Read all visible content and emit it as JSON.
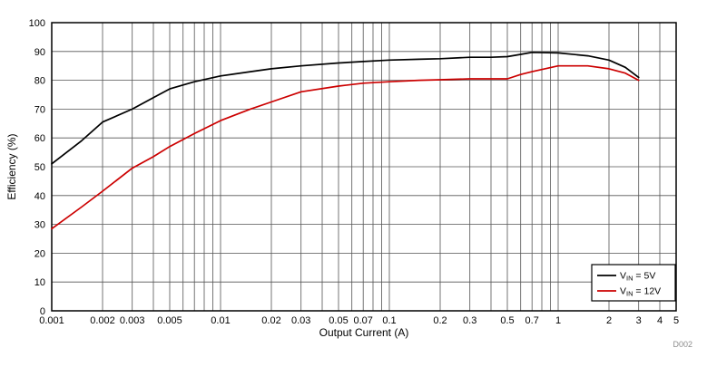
{
  "chart_data": {
    "type": "line",
    "xlabel": "Output Current (A)",
    "ylabel": "Efficiency (%)",
    "watermark": "D002",
    "xscale": "log",
    "xlim": [
      0.001,
      5
    ],
    "ylim": [
      0,
      100
    ],
    "grid": true,
    "legend_position": "lower right",
    "colors": {
      "grid": "#545454",
      "axis": "#000000",
      "legend_border": "#000000",
      "legend_fill": "#ffffff",
      "watermark": "#8c8c8c"
    },
    "x_ticks": [
      {
        "v": 0.001,
        "label": "0.001"
      },
      {
        "v": 0.002,
        "label": "0.002"
      },
      {
        "v": 0.003,
        "label": "0.003"
      },
      {
        "v": 0.005,
        "label": "0.005"
      },
      {
        "v": 0.01,
        "label": "0.01"
      },
      {
        "v": 0.02,
        "label": "0.02"
      },
      {
        "v": 0.03,
        "label": "0.03"
      },
      {
        "v": 0.05,
        "label": "0.05"
      },
      {
        "v": 0.07,
        "label": "0.07"
      },
      {
        "v": 0.1,
        "label": "0.1"
      },
      {
        "v": 0.2,
        "label": "0.2"
      },
      {
        "v": 0.3,
        "label": "0.3"
      },
      {
        "v": 0.5,
        "label": "0.5"
      },
      {
        "v": 0.7,
        "label": "0.7"
      },
      {
        "v": 1,
        "label": "1"
      },
      {
        "v": 2,
        "label": "2"
      },
      {
        "v": 3,
        "label": "3"
      },
      {
        "v": 4,
        "label": "4"
      },
      {
        "v": 5,
        "label": "5"
      }
    ],
    "y_ticks": [
      0,
      10,
      20,
      30,
      40,
      50,
      60,
      70,
      80,
      90,
      100
    ],
    "x": [
      0.001,
      0.0015,
      0.002,
      0.003,
      0.004,
      0.005,
      0.007,
      0.01,
      0.015,
      0.02,
      0.03,
      0.05,
      0.07,
      0.1,
      0.15,
      0.2,
      0.3,
      0.4,
      0.5,
      0.6,
      0.7,
      1,
      1.5,
      2,
      2.5,
      3
    ],
    "series": [
      {
        "key": "vin-5v",
        "name": "VIN = 5V",
        "name_main": "V",
        "name_sub": "IN",
        "name_rest": " = 5V",
        "color": "#000000",
        "values": [
          51,
          59,
          65.5,
          70,
          74,
          77,
          79.5,
          81.5,
          83,
          84,
          85,
          86,
          86.5,
          87,
          87.3,
          87.5,
          88,
          88,
          88.2,
          89,
          89.7,
          89.5,
          88.5,
          87,
          84.5,
          81
        ]
      },
      {
        "key": "vin-12v",
        "name": "VIN = 12V",
        "name_main": "V",
        "name_sub": "IN",
        "name_rest": " = 12V",
        "color": "#cc0000",
        "values": [
          28.5,
          36,
          41.5,
          49.5,
          53.5,
          57,
          61.5,
          66,
          70,
          72.5,
          76,
          78,
          79,
          79.5,
          80,
          80.2,
          80.5,
          80.5,
          80.5,
          82,
          83,
          85,
          85,
          84,
          82.5,
          80
        ]
      }
    ]
  }
}
